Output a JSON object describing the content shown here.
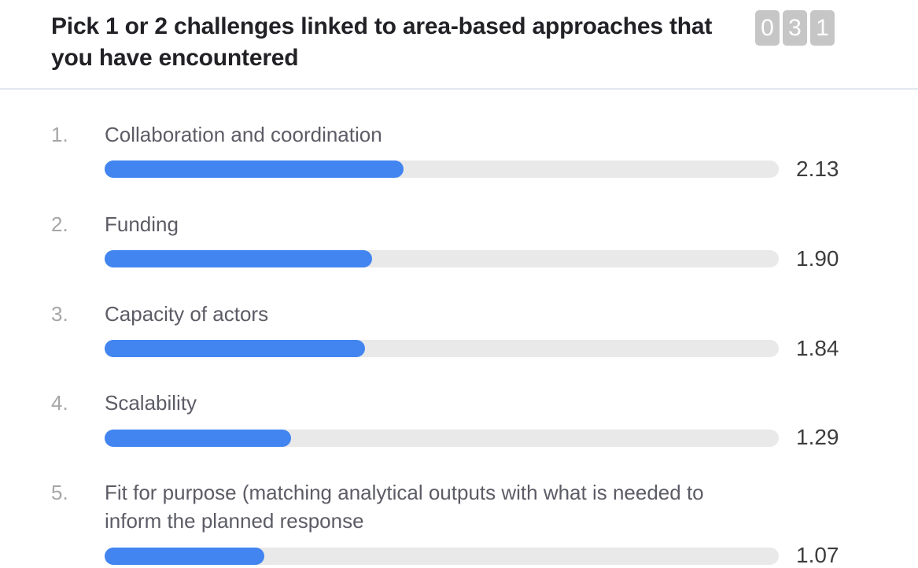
{
  "header": {
    "title": "Pick 1 or 2 challenges linked to area-based approaches that you have encountered",
    "counter_digits": [
      "0",
      "3",
      "1"
    ]
  },
  "results": {
    "items": [
      {
        "rank": "1.",
        "label": "Collaboration and coordination",
        "value": "2.13",
        "bar_percent": 44.3
      },
      {
        "rank": "2.",
        "label": "Funding",
        "value": "1.90",
        "bar_percent": 39.7
      },
      {
        "rank": "3.",
        "label": "Capacity of actors",
        "value": "1.84",
        "bar_percent": 38.6
      },
      {
        "rank": "4.",
        "label": "Scalability",
        "value": "1.29",
        "bar_percent": 27.7
      },
      {
        "rank": "5.",
        "label": "Fit for purpose (matching analytical outputs with what is needed to inform the planned response",
        "value": "1.07",
        "bar_percent": 23.7
      }
    ]
  },
  "colors": {
    "bar_fill": "#4285f0",
    "bar_track": "#e9e9e9",
    "counter_box": "#c6c6c6",
    "counter_digit": "#ffffff",
    "divider": "#e1e8f0",
    "rank_text": "#a6a6a6",
    "label_text": "#5c5c66",
    "value_text": "#3d3d3d",
    "title_text": "#212126"
  },
  "chart_data": {
    "type": "bar",
    "orientation": "horizontal",
    "title": "Pick 1 or 2 challenges linked to area-based approaches that you have encountered",
    "categories": [
      "Collaboration and coordination",
      "Funding",
      "Capacity of actors",
      "Scalability",
      "Fit for purpose (matching analytical outputs with what is needed to inform the planned response"
    ],
    "values": [
      2.13,
      1.9,
      1.84,
      1.29,
      1.07
    ],
    "value_labels": [
      "2.13",
      "1.90",
      "1.84",
      "1.29",
      "1.07"
    ],
    "xlim": [
      0,
      4.8
    ],
    "bar_percents": [
      44.3,
      39.7,
      38.6,
      27.7,
      23.7
    ],
    "legend": false,
    "grid": false,
    "bar_color": "#4285f0",
    "track_color": "#e9e9e9"
  }
}
